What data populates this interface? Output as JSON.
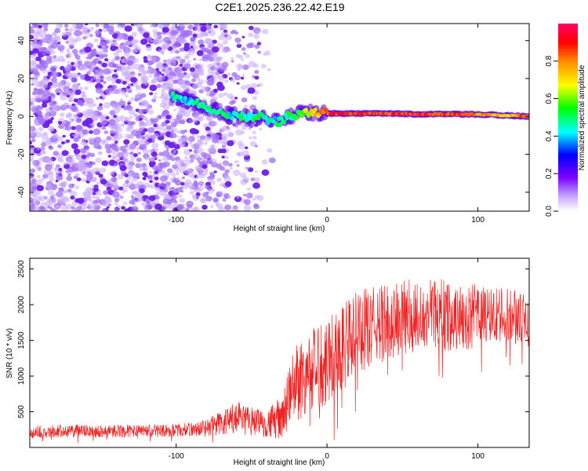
{
  "page_title": "C2E1.2025.236.22.42.E19",
  "colors": {
    "scatter_base": "#7a2cf0",
    "snr_line": "#ee2222",
    "axis": "#000000"
  },
  "chart_data": [
    {
      "type": "heatmap",
      "title": "C2E1.2025.236.22.42.E19",
      "xlabel": "Height of straight line (km)",
      "ylabel": "Frequency (Hz)",
      "xlim": [
        -197,
        134
      ],
      "ylim": [
        -50,
        49
      ],
      "xticks": [
        -100,
        0,
        100
      ],
      "xtick_labels": [
        "-100",
        "0",
        "100"
      ],
      "yticks": [
        -40,
        -20,
        0,
        20,
        40
      ],
      "ytick_labels": [
        "-40",
        "-20",
        "0",
        "20",
        "40"
      ],
      "colorbar": {
        "label": "Normalized spectral amplitude",
        "range": [
          0,
          1
        ],
        "ticks": [
          0.0,
          0.2,
          0.4,
          0.6,
          0.8
        ],
        "tick_labels": [
          "0.0",
          "0.2",
          "0.4",
          "0.6",
          "0.8"
        ],
        "colormap": "white-purple-blue-cyan-green-yellow-orange-red-magenta"
      },
      "ridge": {
        "description": "dominant frequency track vs height",
        "x": [
          -103,
          -95,
          -88,
          -80,
          -72,
          -64,
          -57,
          -50,
          -44,
          -38,
          -32,
          -25,
          -15,
          0,
          20,
          40,
          60,
          80,
          100,
          120,
          134
        ],
        "y": [
          11,
          9,
          7,
          5,
          3,
          1,
          0,
          -1,
          0,
          -2,
          -3,
          0,
          2,
          1.5,
          1.5,
          1.5,
          1.2,
          1.2,
          1,
          0.5,
          0
        ],
        "amplitude": [
          0.45,
          0.4,
          0.45,
          0.5,
          0.5,
          0.45,
          0.45,
          0.5,
          0.5,
          0.45,
          0.45,
          0.5,
          0.6,
          0.85,
          0.9,
          0.85,
          0.9,
          0.85,
          0.8,
          0.7,
          0.9
        ]
      },
      "noise_region": {
        "x_range": [
          -197,
          -35
        ],
        "density": "high below -80 km, decreasing toward -35 km"
      }
    },
    {
      "type": "line",
      "xlabel": "Height of straight line (km)",
      "ylabel": "SNR (10 * v/v)",
      "xlim": [
        -197,
        134
      ],
      "ylim": [
        0,
        2650
      ],
      "xticks": [
        -100,
        0,
        100
      ],
      "xtick_labels": [
        "-100",
        "0",
        "100"
      ],
      "yticks": [
        500,
        1000,
        1500,
        2000,
        2500
      ],
      "ytick_labels": [
        "500",
        "1000",
        "1500",
        "2000",
        "2500"
      ],
      "series": [
        {
          "name": "SNR",
          "x": [
            -197,
            -180,
            -160,
            -140,
            -120,
            -100,
            -85,
            -78,
            -70,
            -60,
            -50,
            -40,
            -30,
            -20,
            -10,
            0,
            10,
            20,
            30,
            40,
            50,
            60,
            70,
            80,
            90,
            100,
            110,
            120,
            130,
            134
          ],
          "mean": [
            220,
            225,
            230,
            230,
            230,
            240,
            260,
            300,
            340,
            400,
            370,
            340,
            420,
            950,
            1050,
            1250,
            1400,
            1600,
            1700,
            1750,
            1800,
            1850,
            1900,
            1850,
            1800,
            1850,
            1850,
            1850,
            1800,
            1700
          ],
          "spread": [
            90,
            90,
            90,
            90,
            90,
            90,
            100,
            150,
            180,
            250,
            200,
            200,
            300,
            600,
            600,
            650,
            650,
            600,
            550,
            550,
            550,
            500,
            500,
            500,
            450,
            450,
            400,
            400,
            350,
            300
          ]
        }
      ]
    }
  ]
}
